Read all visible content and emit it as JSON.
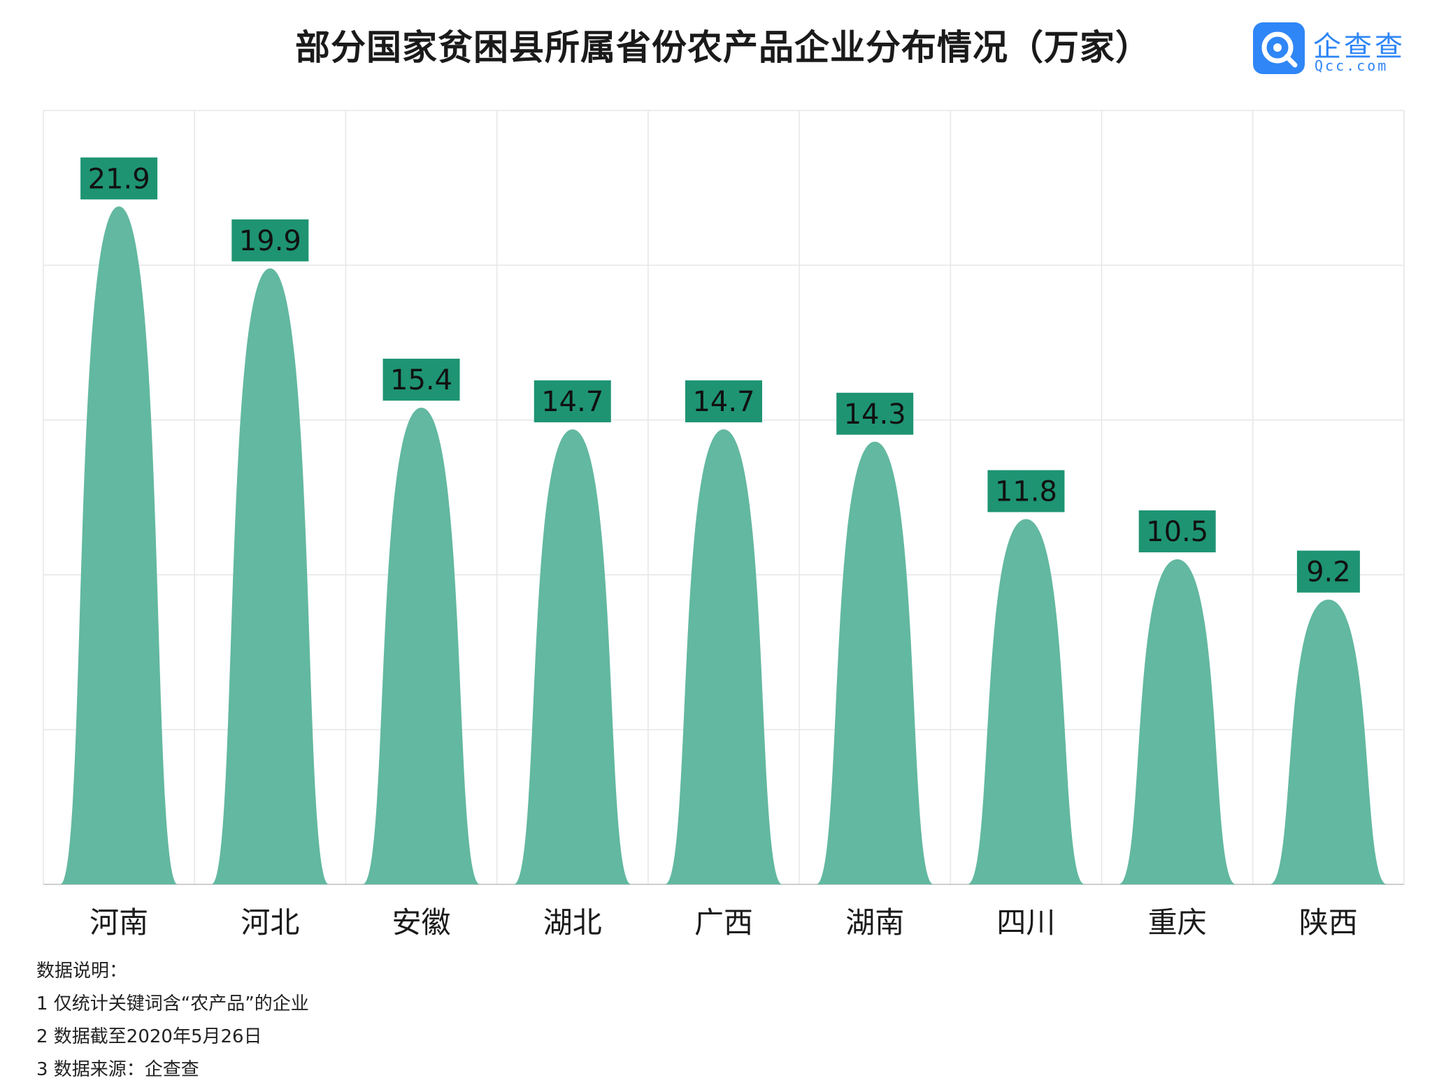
{
  "title": "部分国家贫困县所属省份农产品企业分布情况（万家）",
  "logo": {
    "name": "企查查",
    "sub": "Qcc.com"
  },
  "colors": {
    "bar": "#62b8a0",
    "label_bg": "#1e9473",
    "grid": "#e6e6e6",
    "logo": "#2f86f6"
  },
  "chart_data": {
    "type": "bar",
    "categories": [
      "河南",
      "河北",
      "安徽",
      "湖北",
      "广西",
      "湖南",
      "四川",
      "重庆",
      "陕西"
    ],
    "values": [
      21.9,
      19.9,
      15.4,
      14.7,
      14.7,
      14.3,
      11.8,
      10.5,
      9.2
    ],
    "title": "部分国家贫困县所属省份农产品企业分布情况（万家）",
    "ylim": [
      0,
      25
    ],
    "grid": true
  },
  "notes": [
    "数据说明：",
    "1 仅统计关键词含“农产品”的企业",
    "2 数据截至2020年5月26日",
    "3 数据来源：企查查"
  ]
}
